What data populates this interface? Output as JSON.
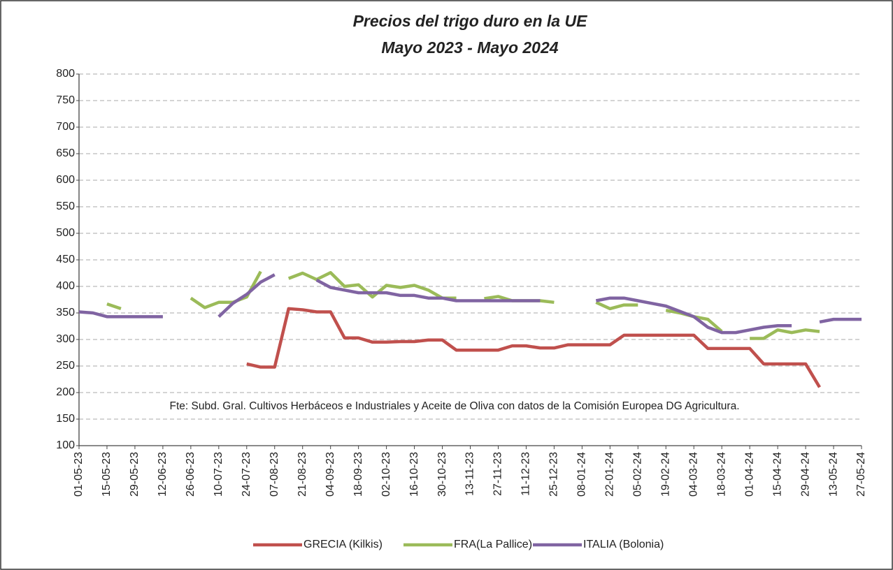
{
  "chart_data": {
    "type": "line",
    "title": "Precios del trigo duro en la UE",
    "subtitle": "Mayo 2023 - Mayo 2024",
    "annotation": "Fte: Subd. Gral. Cultivos Herbáceos e Industriales y Aceite de Oliva con datos de la Comisión Europea DG Agricultura.",
    "categories": [
      "01-05-23",
      null,
      "15-05-23",
      null,
      "29-05-23",
      null,
      "12-06-23",
      null,
      "26-06-23",
      null,
      "10-07-23",
      null,
      "24-07-23",
      null,
      "07-08-23",
      null,
      "21-08-23",
      null,
      "04-09-23",
      null,
      "18-09-23",
      null,
      "02-10-23",
      null,
      "16-10-23",
      null,
      "30-10-23",
      null,
      "13-11-23",
      null,
      "27-11-23",
      null,
      "11-12-23",
      null,
      "25-12-23",
      null,
      "08-01-24",
      null,
      "22-01-24",
      null,
      "05-02-24",
      null,
      "19-02-24",
      null,
      "04-03-24",
      null,
      "18-03-24",
      null,
      "01-04-24",
      null,
      "15-04-24",
      null,
      "29-04-24",
      null,
      "13-05-24",
      null,
      "27-05-24"
    ],
    "series": [
      {
        "name": "GRECIA (Kilkis)",
        "color": "#c0504d",
        "values": [
          null,
          null,
          null,
          null,
          null,
          null,
          null,
          null,
          null,
          null,
          null,
          null,
          254,
          248,
          248,
          358,
          356,
          352,
          352,
          303,
          303,
          295,
          295,
          296,
          296,
          299,
          299,
          280,
          280,
          280,
          280,
          288,
          288,
          284,
          284,
          290,
          290,
          290,
          290,
          308,
          308,
          308,
          308,
          308,
          308,
          283,
          283,
          283,
          283,
          254,
          254,
          254,
          254,
          210,
          null,
          null,
          null
        ]
      },
      {
        "name": "FRA(La Pallice)",
        "color": "#9bbb59",
        "values": [
          null,
          null,
          367,
          358,
          null,
          null,
          null,
          null,
          378,
          360,
          370,
          370,
          380,
          428,
          null,
          415,
          425,
          413,
          426,
          400,
          403,
          380,
          402,
          398,
          402,
          393,
          378,
          378,
          null,
          377,
          381,
          373,
          373,
          373,
          370,
          null,
          null,
          370,
          358,
          365,
          365,
          null,
          355,
          350,
          343,
          338,
          315,
          null,
          302,
          302,
          318,
          313,
          318,
          315,
          null,
          null,
          null
        ]
      },
      {
        "name": "ITALIA (Bolonia)",
        "color": "#8064a2",
        "values": [
          352,
          350,
          343,
          343,
          343,
          343,
          343,
          null,
          null,
          null,
          343,
          368,
          385,
          408,
          422,
          null,
          null,
          412,
          398,
          393,
          388,
          388,
          388,
          383,
          383,
          378,
          378,
          373,
          373,
          373,
          373,
          373,
          373,
          373,
          null,
          null,
          null,
          373,
          378,
          378,
          373,
          368,
          363,
          353,
          343,
          323,
          313,
          313,
          318,
          323,
          326,
          326,
          null,
          333,
          338,
          338,
          338
        ]
      }
    ],
    "ylim": [
      100,
      800
    ],
    "yticks": [
      100,
      150,
      200,
      250,
      300,
      350,
      400,
      450,
      500,
      550,
      600,
      650,
      700,
      750,
      800
    ],
    "grid": true
  }
}
